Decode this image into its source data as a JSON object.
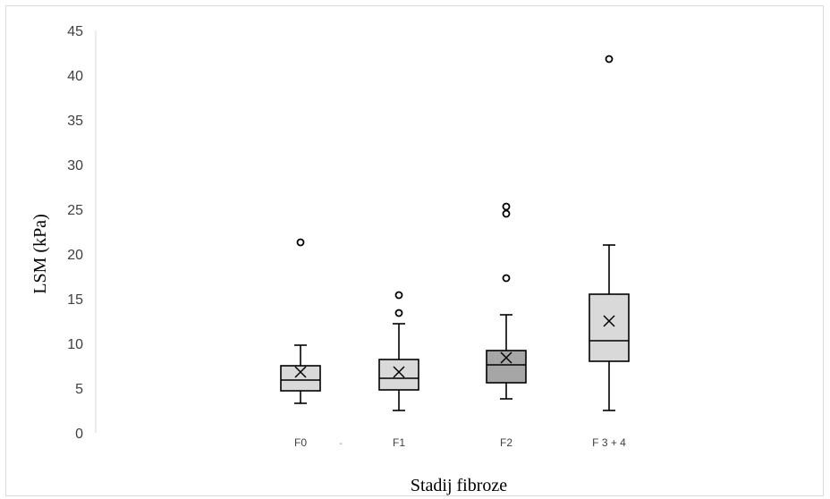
{
  "chart_data": {
    "type": "box",
    "xlabel": "Stadij fibroze",
    "ylabel": "LSM (kPa)",
    "ylim": [
      0,
      45
    ],
    "yticks": [
      0,
      5,
      10,
      15,
      20,
      25,
      30,
      35,
      40,
      45
    ],
    "grid": false,
    "categories": [
      "F0",
      "F1",
      "F2",
      "F 3 + 4"
    ],
    "boxes": [
      {
        "category": "F0",
        "min": 3.3,
        "q1": 4.7,
        "median": 5.9,
        "q3": 7.5,
        "max": 9.8,
        "mean": 6.8,
        "outliers": [
          21.3
        ],
        "color": "#d9d9d9"
      },
      {
        "category": "F1",
        "min": 2.5,
        "q1": 4.8,
        "median": 6.1,
        "q3": 8.2,
        "max": 12.2,
        "mean": 6.8,
        "outliers": [
          13.4,
          15.4
        ],
        "color": "#d9d9d9"
      },
      {
        "category": "F2",
        "min": 3.8,
        "q1": 5.6,
        "median": 7.6,
        "q3": 9.2,
        "max": 13.2,
        "mean": 8.4,
        "outliers": [
          17.3,
          24.5,
          25.3
        ],
        "color": "#a6a6a6"
      },
      {
        "category": "F 3 + 4",
        "min": 2.5,
        "q1": 8.0,
        "median": 10.3,
        "q3": 15.5,
        "max": 21.0,
        "mean": 12.5,
        "outliers": [
          41.8
        ],
        "color": "#d9d9d9"
      }
    ]
  }
}
